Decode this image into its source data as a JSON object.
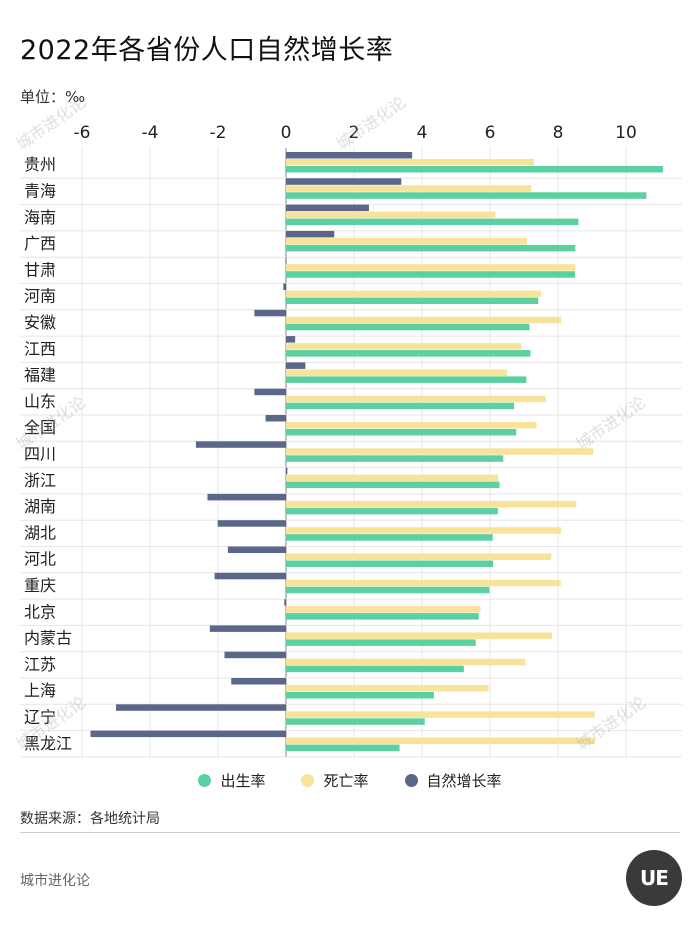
{
  "title": "2022年各省份人口自然增长率",
  "unit_label": "单位：‰",
  "legend": [
    {
      "label": "出生率",
      "color": "#5cd0a0"
    },
    {
      "label": "死亡率",
      "color": "#f8e39a"
    },
    {
      "label": "自然增长率",
      "color": "#5b6788"
    }
  ],
  "source": "数据来源：各地统计局",
  "brand": "城市进化论",
  "logo_text": "UE",
  "watermark": "城市进化论",
  "chart_data": {
    "type": "bar",
    "orientation": "horizontal",
    "title": "2022年各省份人口自然增长率",
    "unit": "‰",
    "xlim": [
      -6,
      11.5
    ],
    "xticks": [
      -6,
      -4,
      -2,
      0,
      2,
      4,
      6,
      8,
      10
    ],
    "grid": true,
    "legend_position": "bottom",
    "categories": [
      "贵州",
      "青海",
      "海南",
      "广西",
      "甘肃",
      "河南",
      "安徽",
      "江西",
      "福建",
      "山东",
      "全国",
      "四川",
      "浙江",
      "湖南",
      "湖北",
      "河北",
      "重庆",
      "北京",
      "内蒙古",
      "江苏",
      "上海",
      "辽宁",
      "黑龙江"
    ],
    "series": [
      {
        "name": "出生率",
        "color": "#5cd0a0",
        "values": [
          11.09,
          10.6,
          8.6,
          8.51,
          8.5,
          7.42,
          7.16,
          7.19,
          7.07,
          6.71,
          6.77,
          6.39,
          6.28,
          6.23,
          6.08,
          6.09,
          5.98,
          5.67,
          5.58,
          5.23,
          4.35,
          4.08,
          3.34
        ]
      },
      {
        "name": "死亡率",
        "color": "#f8e39a",
        "values": [
          7.29,
          7.21,
          6.16,
          7.09,
          8.51,
          7.5,
          8.09,
          6.92,
          6.5,
          7.64,
          7.37,
          9.04,
          6.24,
          8.54,
          8.09,
          7.8,
          8.08,
          5.72,
          7.82,
          7.04,
          5.96,
          9.08,
          9.09
        ]
      },
      {
        "name": "自然增长率",
        "color": "#5b6788",
        "values": [
          3.71,
          3.39,
          2.44,
          1.42,
          -0.01,
          -0.08,
          -0.93,
          0.27,
          0.57,
          -0.93,
          -0.6,
          -2.65,
          0.04,
          -2.31,
          -2.01,
          -1.71,
          -2.1,
          -0.05,
          -2.24,
          -1.81,
          -1.61,
          -5.0,
          -5.75
        ]
      }
    ]
  }
}
